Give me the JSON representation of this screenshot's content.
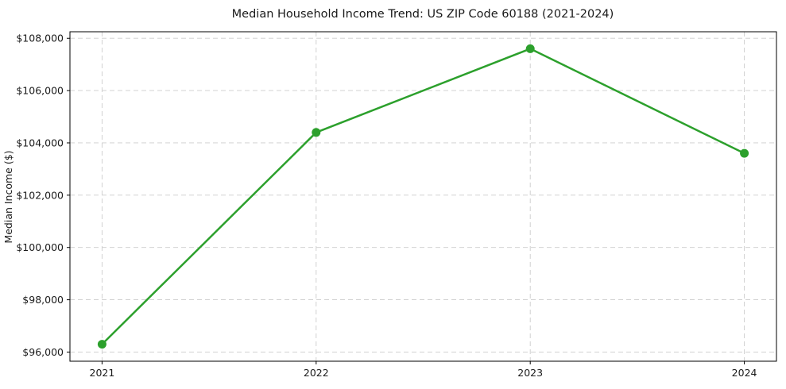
{
  "figure": {
    "background": "#ffffff"
  },
  "chart_data": {
    "type": "line",
    "title": "Median Household Income Trend: US ZIP Code 60188 (2021-2024)",
    "xlabel": "",
    "ylabel": "Median Income ($)",
    "x": [
      2021,
      2022,
      2023,
      2024
    ],
    "x_tick_labels": [
      "2021",
      "2022",
      "2023",
      "2024"
    ],
    "values": [
      96300,
      104400,
      107600,
      103600
    ],
    "y_ticks": [
      96000,
      98000,
      100000,
      102000,
      104000,
      106000,
      108000
    ],
    "y_tick_labels": [
      "$96,000",
      "$98,000",
      "$100,000",
      "$102,000",
      "$104,000",
      "$106,000",
      "$108,000"
    ],
    "xlim": [
      2020.85,
      2024.15
    ],
    "ylim": [
      95650,
      108250
    ],
    "grid": true,
    "grid_style": "dashed",
    "grid_color": "#cccccc",
    "line_color": "#2ca02c",
    "marker": "circle",
    "legend_position": "none"
  }
}
